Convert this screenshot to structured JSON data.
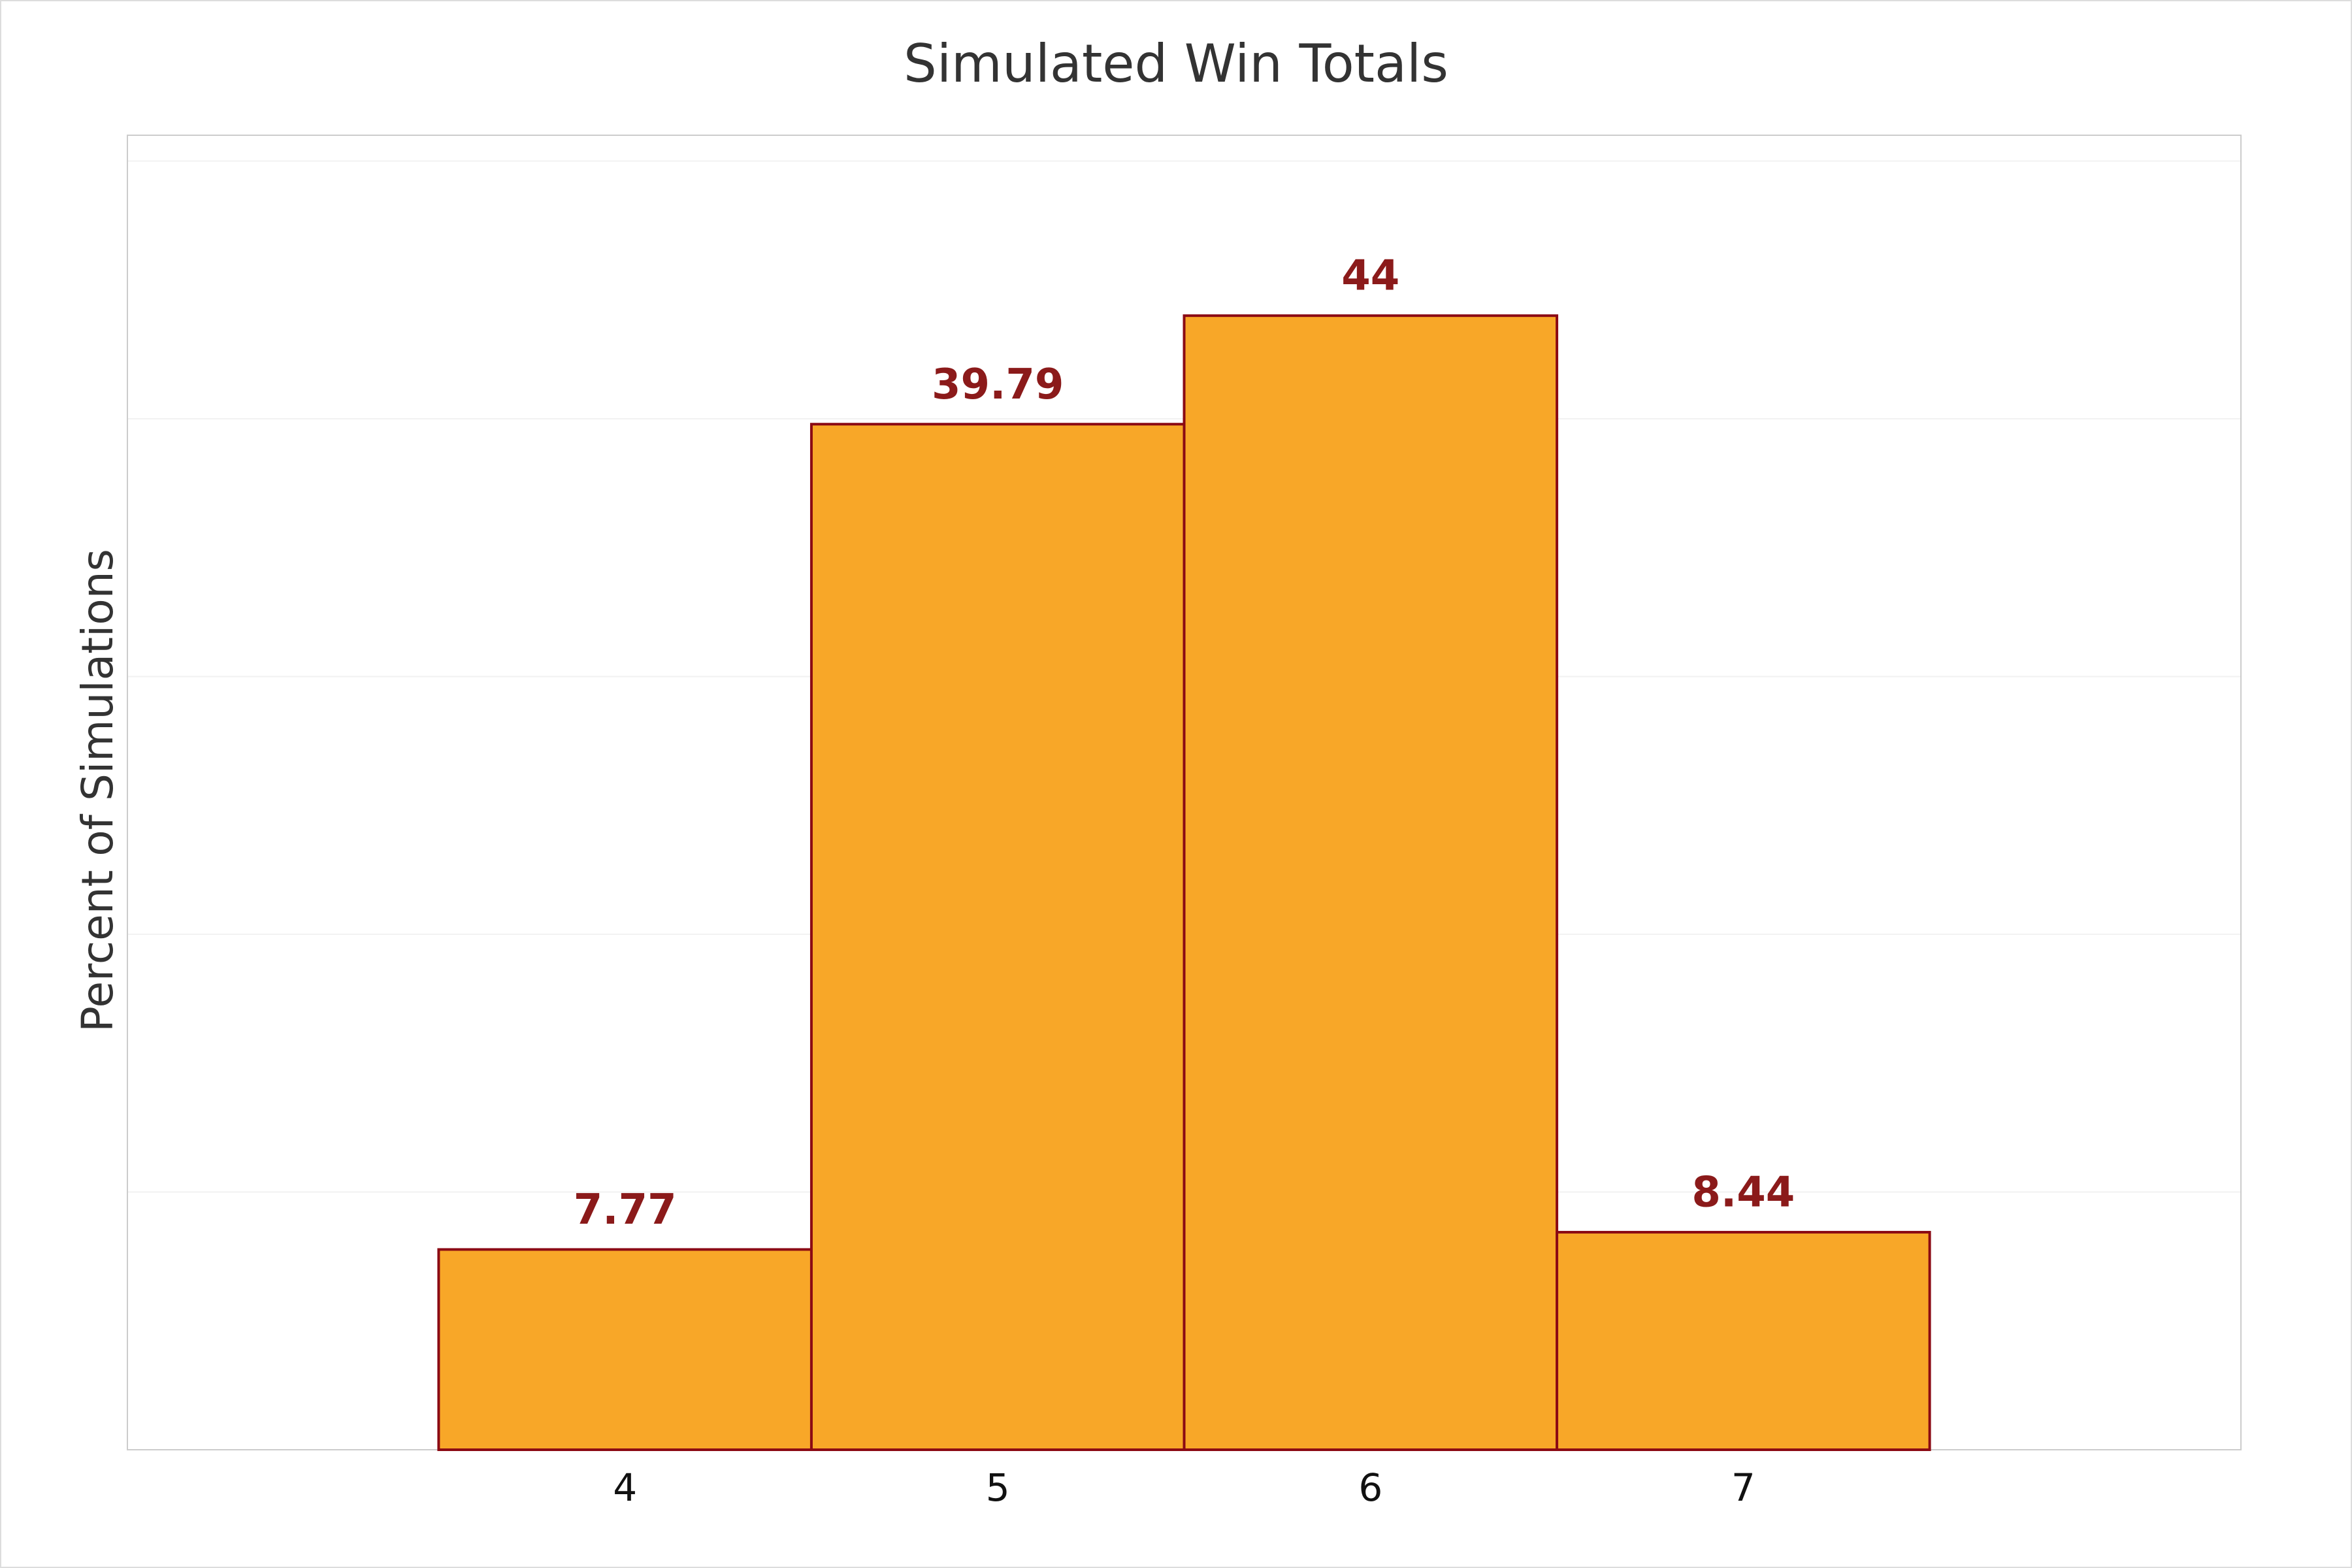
{
  "chart_data": {
    "type": "bar",
    "title": "Simulated Win Totals",
    "y_label": "Percent of Simulations",
    "categories": [
      "4",
      "5",
      "6",
      "7"
    ],
    "values": [
      7.77,
      39.79,
      44,
      8.44
    ],
    "color": "#f8a728",
    "edge_color": "#8b0a14",
    "label_color": "#8b1a1a",
    "ylim": [
      0,
      51
    ],
    "yticks": [
      0,
      10,
      20,
      30,
      40,
      50
    ],
    "grid": true
  }
}
